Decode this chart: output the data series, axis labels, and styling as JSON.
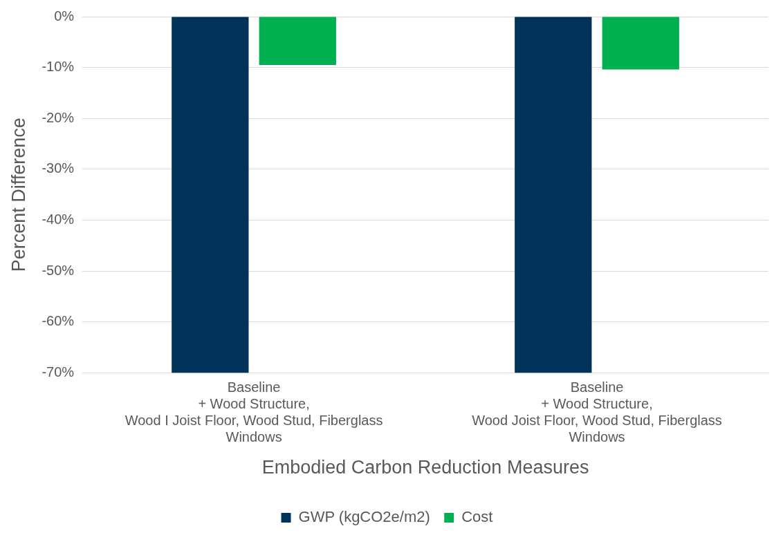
{
  "chart_data": {
    "type": "bar",
    "xlabel": "Embodied Carbon Reduction Measures",
    "ylabel": "Percent Difference",
    "categories": [
      "Baseline\n+ Wood Structure,\nWood I Joist Floor, Wood Stud, Fiberglass\nWindows",
      "Baseline\n+ Wood Structure,\nWood Joist Floor, Wood Stud, Fiberglass\nWindows"
    ],
    "series": [
      {
        "name": "GWP (kgCO2e/m2)",
        "color": "#003359",
        "values": [
          -70,
          -70
        ]
      },
      {
        "name": "Cost",
        "color": "#00b050",
        "values": [
          -9.5,
          -10.4
        ]
      }
    ],
    "ylim": [
      -70,
      0
    ],
    "yticks": [
      {
        "value": -70,
        "label": "-70%"
      },
      {
        "value": -60,
        "label": "-60%"
      },
      {
        "value": -50,
        "label": "-50%"
      },
      {
        "value": -40,
        "label": "-40%"
      },
      {
        "value": -30,
        "label": "-30%"
      },
      {
        "value": -20,
        "label": "-20%"
      },
      {
        "value": -10,
        "label": "-10%"
      },
      {
        "value": 0,
        "label": "0%"
      }
    ],
    "grid": "y",
    "legend": "bottom"
  }
}
